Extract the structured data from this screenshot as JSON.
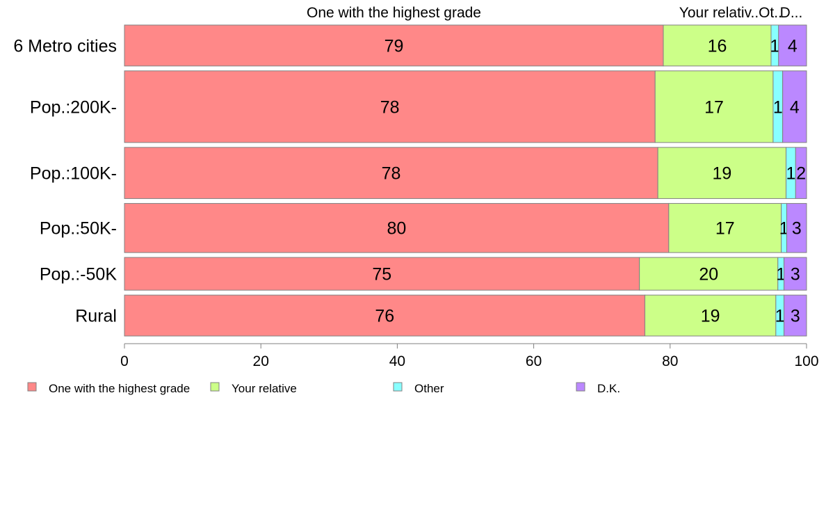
{
  "chart_data": {
    "type": "bar",
    "orientation": "horizontal",
    "stacked": true,
    "top_labels": [
      "One with the highest grade",
      "Your relativ..",
      "Ot..",
      "D..."
    ],
    "categories": [
      "6 Metro cities",
      "Pop.:200K-",
      "Pop.:100K-",
      "Pop.:50K-",
      "Pop.:-50K",
      "Rural"
    ],
    "bar_weights": [
      1.0,
      1.75,
      1.25,
      1.2,
      0.8,
      1.0
    ],
    "series": [
      {
        "name": "One with the highest grade",
        "color": "#ff8888",
        "values": [
          79.0,
          77.8,
          78.2,
          79.8,
          75.5,
          76.3
        ]
      },
      {
        "name": "Your relative",
        "color": "#ccff88",
        "values": [
          15.8,
          17.3,
          18.8,
          16.5,
          20.3,
          19.2
        ]
      },
      {
        "name": "Other",
        "color": "#88ffff",
        "values": [
          1.1,
          1.4,
          1.4,
          0.8,
          0.9,
          1.2
        ]
      },
      {
        "name": "D.K.",
        "color": "#bb88ff",
        "values": [
          4.1,
          3.5,
          1.6,
          2.9,
          3.3,
          3.3
        ]
      }
    ],
    "data_labels": [
      [
        "79",
        "16",
        "1",
        "4"
      ],
      [
        "78",
        "17",
        "1",
        "4"
      ],
      [
        "78",
        "19",
        "1",
        "2"
      ],
      [
        "80",
        "17",
        "1",
        "3"
      ],
      [
        "75",
        "20",
        "1",
        "3"
      ],
      [
        "76",
        "19",
        "1",
        "3"
      ]
    ],
    "xlim": [
      0,
      100
    ],
    "xticks": [
      0,
      20,
      40,
      60,
      80,
      100
    ],
    "grid": false,
    "legend_position": "bottom"
  }
}
